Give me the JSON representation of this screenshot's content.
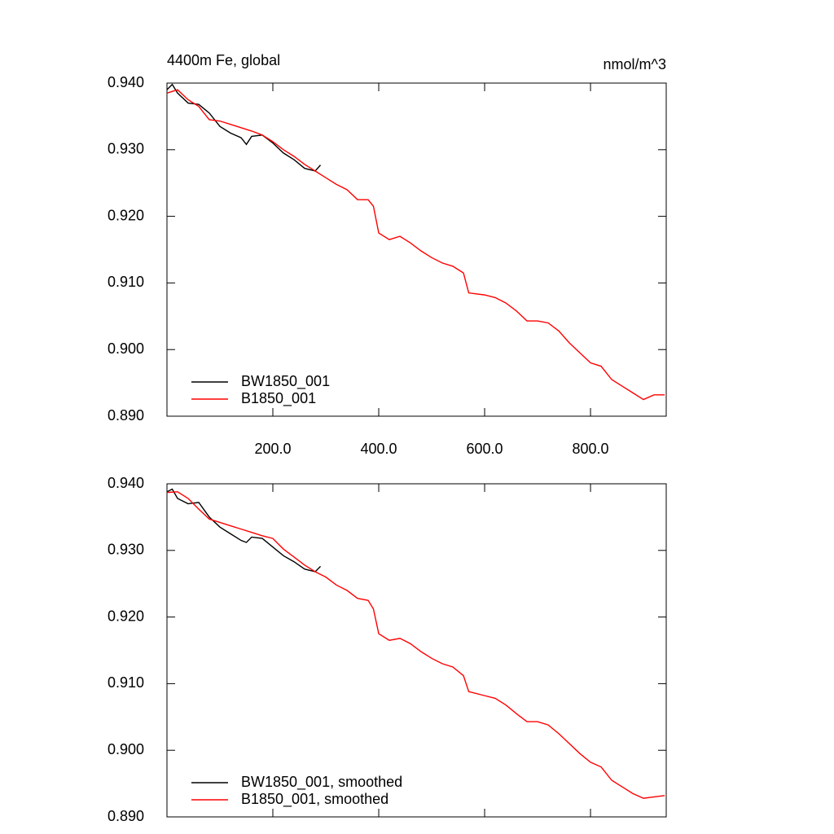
{
  "chart_data": [
    {
      "type": "line",
      "title": "4400m Fe, global",
      "units": "nmol/m^3",
      "xlim": [
        0,
        943
      ],
      "ylim": [
        0.89,
        0.94
      ],
      "xticks": [
        {
          "value": 200,
          "label": "200.0"
        },
        {
          "value": 400,
          "label": "400.0"
        },
        {
          "value": 600,
          "label": "600.0"
        },
        {
          "value": 800,
          "label": "800.0"
        }
      ],
      "yticks": [
        {
          "value": 0.89,
          "label": "0.890"
        },
        {
          "value": 0.9,
          "label": "0.900"
        },
        {
          "value": 0.91,
          "label": "0.910"
        },
        {
          "value": 0.92,
          "label": "0.920"
        },
        {
          "value": 0.93,
          "label": "0.930"
        },
        {
          "value": 0.94,
          "label": "0.940"
        }
      ],
      "legend": "lower left",
      "series": [
        {
          "name": "BW1850_001",
          "color": "#000000",
          "x": [
            0,
            10,
            20,
            40,
            60,
            80,
            100,
            120,
            140,
            150,
            160,
            180,
            200,
            220,
            240,
            260,
            280,
            290
          ],
          "values": [
            0.939,
            0.9398,
            0.9385,
            0.937,
            0.9368,
            0.9355,
            0.9335,
            0.9325,
            0.9318,
            0.9308,
            0.932,
            0.9322,
            0.931,
            0.9295,
            0.9285,
            0.9272,
            0.9268,
            0.9277
          ]
        },
        {
          "name": "B1850_001",
          "color": "#ff0000",
          "x": [
            0,
            20,
            40,
            60,
            80,
            100,
            120,
            140,
            160,
            180,
            200,
            220,
            240,
            260,
            280,
            300,
            320,
            340,
            360,
            380,
            390,
            400,
            420,
            440,
            460,
            480,
            500,
            520,
            540,
            560,
            570,
            600,
            620,
            640,
            660,
            680,
            700,
            720,
            740,
            760,
            780,
            800,
            820,
            840,
            860,
            880,
            900,
            920,
            940
          ],
          "values": [
            0.9385,
            0.939,
            0.9375,
            0.9365,
            0.9345,
            0.9343,
            0.9338,
            0.9333,
            0.9328,
            0.9322,
            0.9312,
            0.93,
            0.929,
            0.9278,
            0.9268,
            0.9258,
            0.9248,
            0.924,
            0.9225,
            0.9225,
            0.9215,
            0.9175,
            0.9165,
            0.917,
            0.916,
            0.9148,
            0.9138,
            0.913,
            0.9125,
            0.9115,
            0.9085,
            0.9082,
            0.9078,
            0.907,
            0.9058,
            0.9043,
            0.9043,
            0.904,
            0.9028,
            0.901,
            0.8995,
            0.898,
            0.8975,
            0.8955,
            0.8945,
            0.8935,
            0.8925,
            0.8932,
            0.8932
          ]
        }
      ]
    },
    {
      "type": "line",
      "xlim": [
        0,
        943
      ],
      "ylim": [
        0.89,
        0.94
      ],
      "xticks": [
        200,
        400,
        600,
        800
      ],
      "yticks": [
        {
          "value": 0.89,
          "label": "0.890"
        },
        {
          "value": 0.9,
          "label": "0.900"
        },
        {
          "value": 0.91,
          "label": "0.910"
        },
        {
          "value": 0.92,
          "label": "0.920"
        },
        {
          "value": 0.93,
          "label": "0.930"
        },
        {
          "value": 0.94,
          "label": "0.940"
        }
      ],
      "legend": "lower left",
      "series": [
        {
          "name": "BW1850_001, smoothed",
          "color": "#000000",
          "x": [
            0,
            10,
            20,
            40,
            60,
            80,
            100,
            120,
            140,
            150,
            160,
            180,
            200,
            220,
            240,
            260,
            280,
            290
          ],
          "values": [
            0.9388,
            0.9392,
            0.9378,
            0.937,
            0.9372,
            0.935,
            0.9335,
            0.9325,
            0.9315,
            0.9312,
            0.932,
            0.9318,
            0.9305,
            0.9292,
            0.9283,
            0.9272,
            0.9268,
            0.9276
          ]
        },
        {
          "name": "B1850_001, smoothed",
          "color": "#ff0000",
          "x": [
            0,
            20,
            40,
            60,
            80,
            100,
            120,
            140,
            160,
            180,
            200,
            220,
            240,
            260,
            280,
            300,
            320,
            340,
            360,
            380,
            390,
            400,
            420,
            440,
            460,
            480,
            500,
            520,
            540,
            560,
            570,
            600,
            620,
            640,
            660,
            680,
            700,
            720,
            740,
            760,
            780,
            800,
            820,
            840,
            860,
            880,
            900,
            920,
            940
          ],
          "values": [
            0.9387,
            0.9388,
            0.9378,
            0.9362,
            0.9347,
            0.9342,
            0.9337,
            0.9332,
            0.9327,
            0.9322,
            0.9318,
            0.9302,
            0.929,
            0.9278,
            0.9268,
            0.926,
            0.9248,
            0.924,
            0.9228,
            0.9225,
            0.9212,
            0.9175,
            0.9165,
            0.9168,
            0.916,
            0.9148,
            0.9138,
            0.913,
            0.9125,
            0.9112,
            0.9088,
            0.9082,
            0.9078,
            0.9068,
            0.9055,
            0.9043,
            0.9043,
            0.9038,
            0.9025,
            0.901,
            0.8995,
            0.8982,
            0.8975,
            0.8955,
            0.8945,
            0.8935,
            0.8928,
            0.893,
            0.8932
          ]
        }
      ]
    }
  ]
}
